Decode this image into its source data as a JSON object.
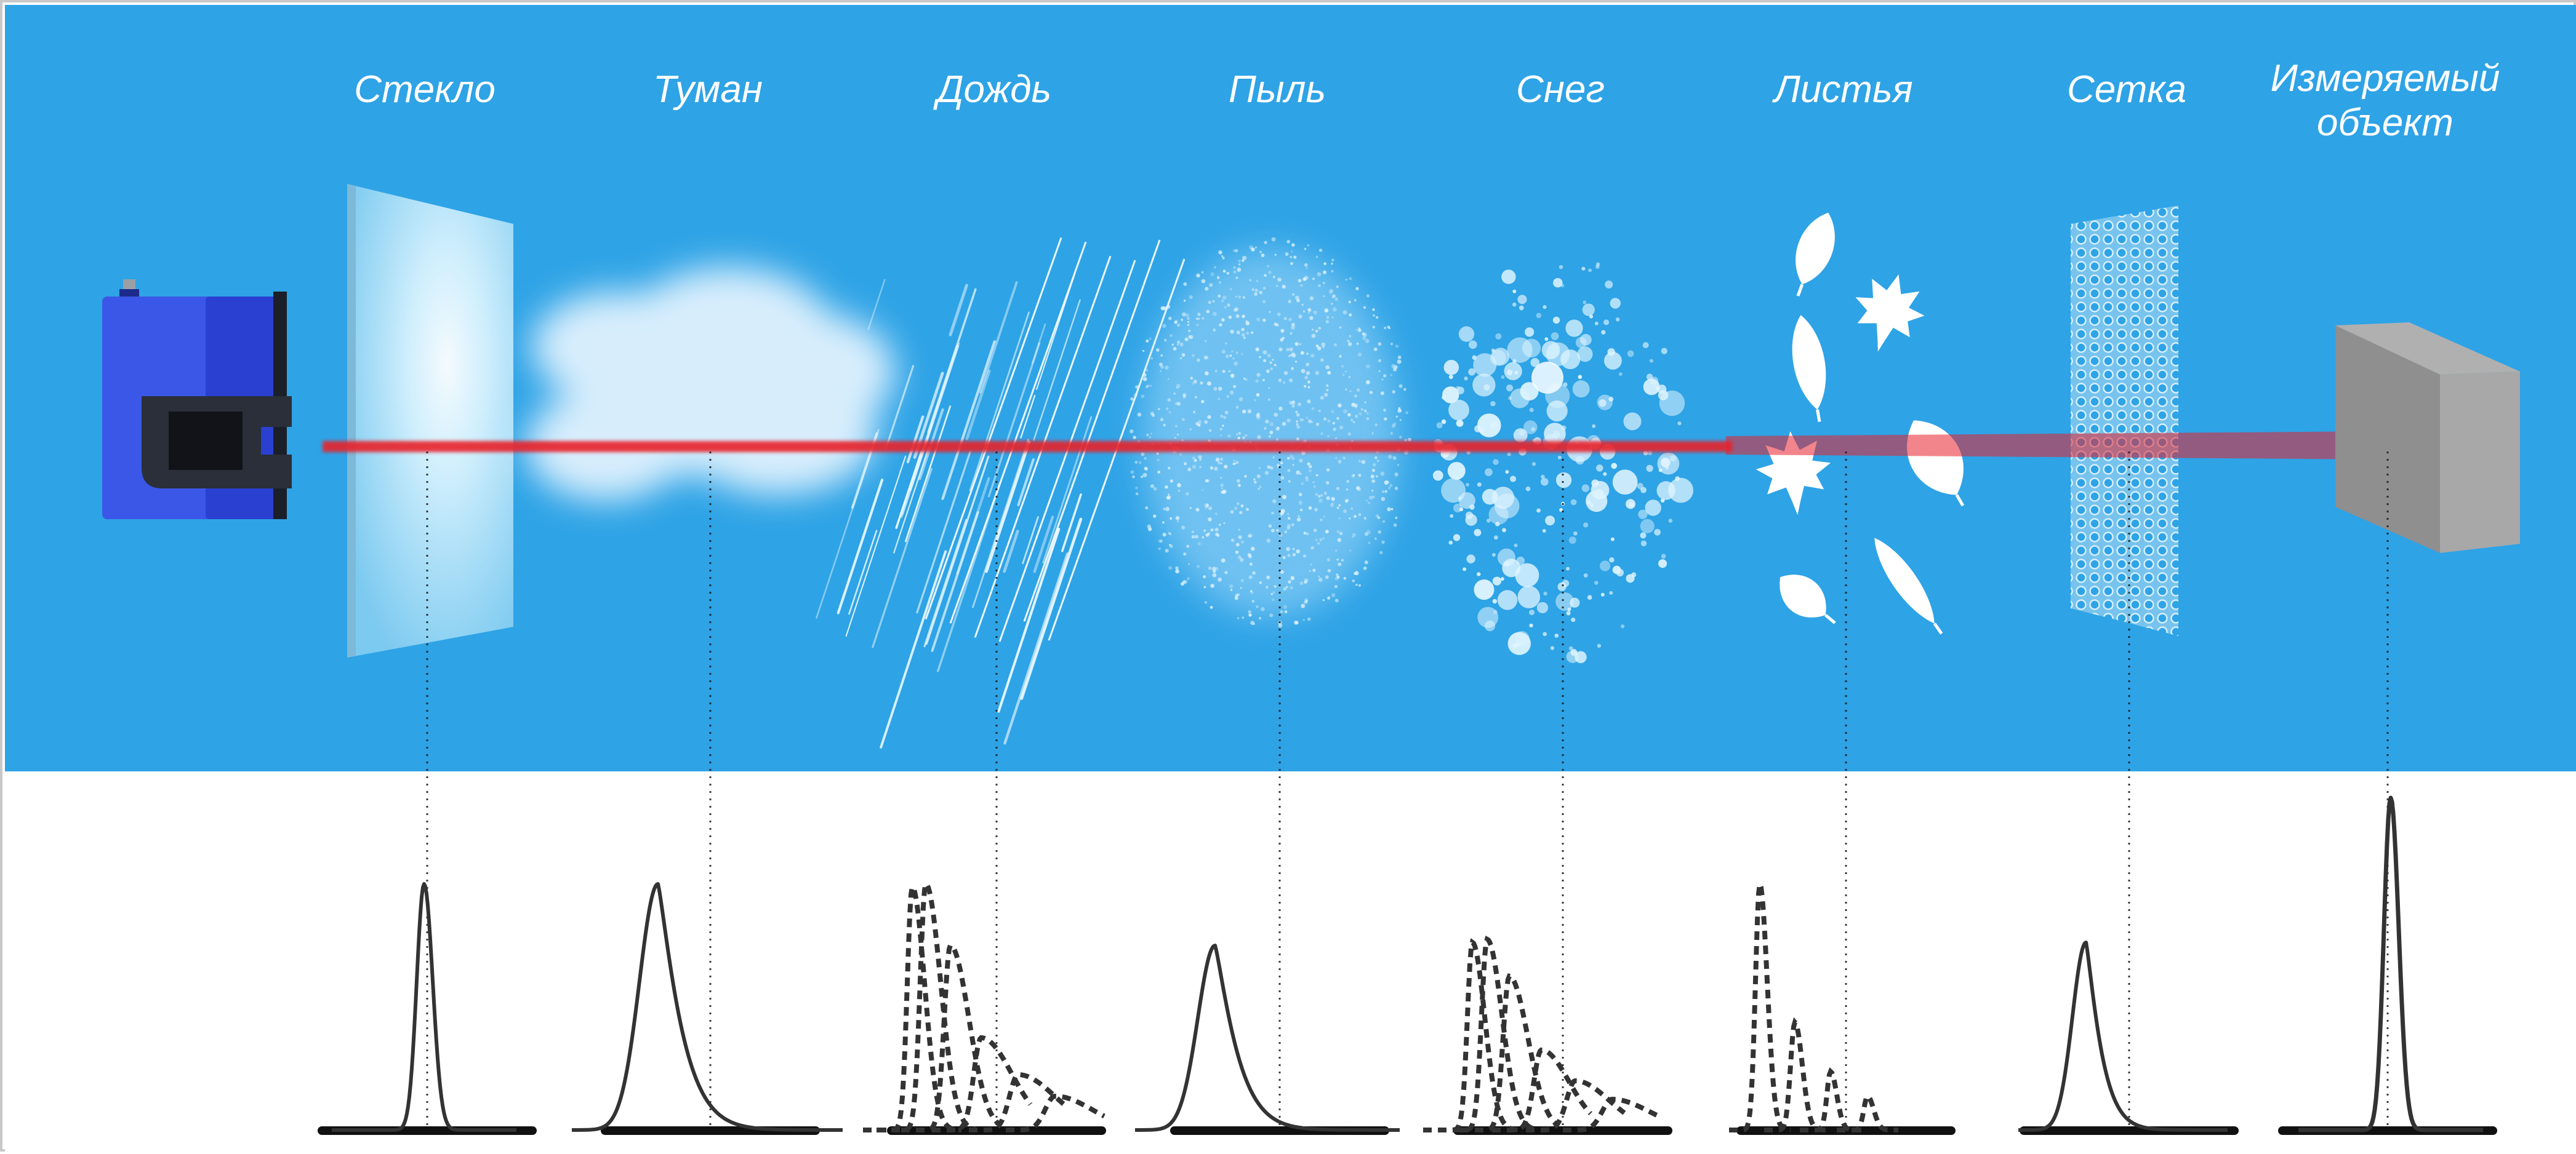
{
  "colors": {
    "sky": "#2ea3e6",
    "panel": "#ffffff",
    "beam": "#e8212b",
    "sensor_body": "#3b57e8",
    "sensor_dark": "#1b1f2a",
    "object": "#9a9a9a",
    "curve": "#333333",
    "baseline": "#111111",
    "label_text": "#ffffff"
  },
  "icons": {
    "sensor": "laser-scanner-icon",
    "target": "gray-cube-icon"
  },
  "media": [
    {
      "id": "glass",
      "label": "Стекло",
      "visual": "glass-pane",
      "response": "narrow-peak"
    },
    {
      "id": "fog",
      "label": "Туман",
      "visual": "fog-cloud",
      "response": "skewed-peak"
    },
    {
      "id": "rain",
      "label": "Дождь",
      "visual": "rain-streaks",
      "response": "dotted-decay"
    },
    {
      "id": "dust",
      "label": "Пыль",
      "visual": "dust-cloud",
      "response": "skewed-peak"
    },
    {
      "id": "snow",
      "label": "Снег",
      "visual": "snowflakes",
      "response": "dotted-decay"
    },
    {
      "id": "leaves",
      "label": "Листья",
      "visual": "leaves",
      "response": "dotted-sparse"
    },
    {
      "id": "mesh",
      "label": "Сетка",
      "visual": "mesh-grid",
      "response": "skewed-peak"
    },
    {
      "id": "object",
      "label": "Измеряемый объект",
      "visual": "target-cube",
      "response": "tall-narrow-peak"
    }
  ]
}
